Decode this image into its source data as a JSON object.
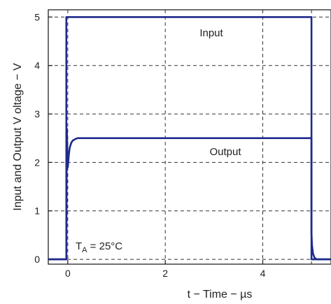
{
  "chart_data": {
    "type": "line",
    "xlabel": "t − Time − µs",
    "ylabel": "Input and Output V oltage − V",
    "xlim": [
      -0.4,
      5.4
    ],
    "ylim": [
      -0.1,
      5.15
    ],
    "x_ticks": [
      {
        "value": 0,
        "label": "0"
      },
      {
        "value": 2,
        "label": "2"
      },
      {
        "value": 4,
        "label": "4"
      }
    ],
    "x_grid": [
      0,
      2,
      4,
      5
    ],
    "y_ticks": [
      {
        "value": 0,
        "label": "0"
      },
      {
        "value": 1,
        "label": "1"
      },
      {
        "value": 2,
        "label": "2"
      },
      {
        "value": 3,
        "label": "3"
      },
      {
        "value": 4,
        "label": "4"
      },
      {
        "value": 5,
        "label": "5"
      }
    ],
    "grid": "dashed",
    "series": [
      {
        "name": "Input",
        "color": "#1f2a8c",
        "x": [
          -0.4,
          -0.03,
          -0.03,
          5.0,
          5.0,
          5.4
        ],
        "y": [
          0,
          0,
          5,
          5,
          0,
          0
        ]
      },
      {
        "name": "Output",
        "color": "#1f2a8c",
        "x": [
          -0.4,
          -0.03,
          -0.02,
          0.0,
          0.02,
          0.04,
          0.07,
          0.1,
          0.15,
          0.2,
          0.3,
          5.0,
          5.0,
          5.01,
          5.03,
          5.06,
          5.1,
          5.4
        ],
        "y": [
          0,
          0,
          2.7,
          1.9,
          2.15,
          2.3,
          2.4,
          2.45,
          2.48,
          2.5,
          2.5,
          2.5,
          0.55,
          0.3,
          0.12,
          0.04,
          0,
          0
        ]
      }
    ],
    "annotations": [
      {
        "text_main": "T",
        "text_sub": "A",
        "text_rest": " = 25°C"
      }
    ]
  }
}
